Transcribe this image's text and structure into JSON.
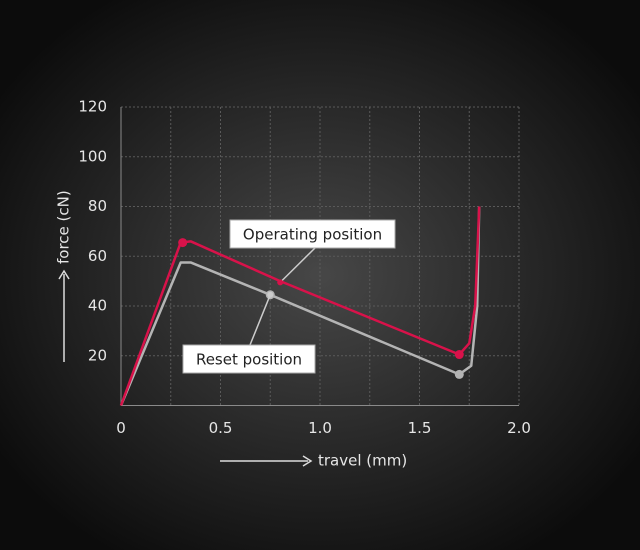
{
  "chart_data": {
    "type": "line",
    "xlabel": "travel (mm)",
    "ylabel": "force (cN)",
    "xlim": [
      0,
      2
    ],
    "ylim": [
      0,
      120
    ],
    "xticks": [
      0,
      0.5,
      {
        "value": 1,
        "label": "1.0"
      },
      1.5,
      {
        "value": 2,
        "label": "2.0"
      }
    ],
    "yticks": [
      20,
      40,
      60,
      80,
      100,
      120
    ],
    "xgrid": [
      0.25,
      0.75,
      1.25,
      1.75
    ],
    "grid": true,
    "series": [
      {
        "name": "Operating position",
        "color": "#d8124a",
        "x": [
          0,
          0.3,
          0.35,
          0.8,
          1.7,
          1.75,
          1.78,
          1.8
        ],
        "values": [
          0,
          65.5,
          66,
          50,
          20.5,
          25,
          40,
          80
        ],
        "marker_x": [
          0.31,
          1.7
        ],
        "marker_values": [
          65.5,
          20.5
        ]
      },
      {
        "name": "Reset position",
        "color": "#b4b4b4",
        "x": [
          0,
          0.3,
          0.35,
          0.75,
          1.7,
          1.76,
          1.79,
          1.8
        ],
        "values": [
          0,
          57.5,
          57.5,
          44.5,
          12.5,
          16,
          40,
          80
        ],
        "marker_x": [
          0.75,
          1.7
        ],
        "marker_values": [
          44.5,
          12.5
        ]
      }
    ],
    "annotations": [
      {
        "text": "Operating position",
        "x": 0.8,
        "y": 49.5
      },
      {
        "text": "Reset position",
        "x": 0.75,
        "y": 44.5
      }
    ]
  }
}
